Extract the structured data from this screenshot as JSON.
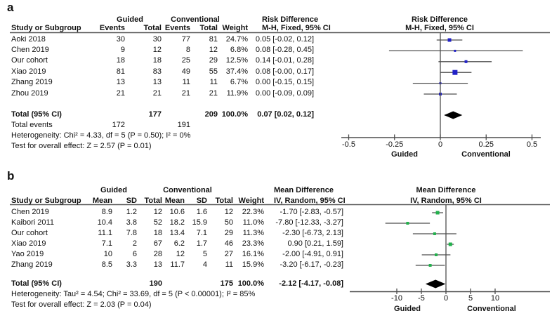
{
  "chart_data": [
    {
      "type": "forest",
      "panel_label": "a",
      "effect_measure": "Risk Difference",
      "method": "M-H, Fixed, 95% CI",
      "group_labels": [
        "Guided",
        "Conventional"
      ],
      "column_headers": {
        "study": "Study or Subgroup",
        "group1": [
          "Events",
          "Total"
        ],
        "group2": [
          "Events",
          "Total"
        ],
        "weight": "Weight",
        "effect": [
          "Risk Difference",
          "M-H, Fixed, 95% CI"
        ]
      },
      "plot_titles": [
        "Risk Difference",
        "M-H, Fixed, 95% CI"
      ],
      "studies": [
        {
          "name": "Aoki 2018",
          "cells": [
            "30",
            "30",
            "77",
            "81",
            "24.7%"
          ],
          "weight_pct": 24.7,
          "est": 0.05,
          "lo": -0.02,
          "hi": 0.12,
          "ci_text": "0.05 [-0.02, 0.12]"
        },
        {
          "name": "Chen 2019",
          "cells": [
            "9",
            "12",
            "8",
            "12",
            "6.8%"
          ],
          "weight_pct": 6.8,
          "est": 0.08,
          "lo": -0.28,
          "hi": 0.45,
          "ci_text": "0.08 [-0.28, 0.45]"
        },
        {
          "name": "Our cohort",
          "cells": [
            "18",
            "18",
            "25",
            "29",
            "12.5%"
          ],
          "weight_pct": 12.5,
          "est": 0.14,
          "lo": -0.01,
          "hi": 0.28,
          "ci_text": "0.14 [-0.01, 0.28]"
        },
        {
          "name": "Xiao 2019",
          "cells": [
            "81",
            "83",
            "49",
            "55",
            "37.4%"
          ],
          "weight_pct": 37.4,
          "est": 0.08,
          "lo": 0.0,
          "hi": 0.17,
          "ci_text": "0.08 [-0.00, 0.17]"
        },
        {
          "name": "Zhang 2019",
          "cells": [
            "13",
            "13",
            "11",
            "11",
            "6.7%"
          ],
          "weight_pct": 6.7,
          "est": 0.0,
          "lo": -0.15,
          "hi": 0.15,
          "ci_text": "0.00 [-0.15, 0.15]"
        },
        {
          "name": "Zhou 2019",
          "cells": [
            "21",
            "21",
            "21",
            "21",
            "11.9%"
          ],
          "weight_pct": 11.9,
          "est": 0.0,
          "lo": -0.09,
          "hi": 0.09,
          "ci_text": "0.00 [-0.09, 0.09]"
        }
      ],
      "total": {
        "name": "Total (95% CI)",
        "cells": [
          "",
          "177",
          "",
          "209",
          "100.0%"
        ],
        "est": 0.07,
        "lo": 0.02,
        "hi": 0.12,
        "ci_text": "0.07 [0.02, 0.12]"
      },
      "total_events": {
        "label": "Total events",
        "values": [
          "172",
          "191"
        ]
      },
      "heterogeneity": "Heterogeneity: Chi² = 4.33, df = 5 (P = 0.50); I² = 0%",
      "overall_effect": "Test for overall effect: Z = 2.57 (P = 0.01)",
      "axis": {
        "tick_values": [
          -0.5,
          -0.25,
          0,
          0.25,
          0.5
        ],
        "tick_labels": [
          "-0.5",
          "-0.25",
          "0",
          "0.25",
          "0.5"
        ],
        "favors_left": "Guided",
        "favors_right": "Conventional"
      },
      "marker_color": "#2121c8",
      "line_color": "#4d4d4d",
      "diamond_color": "#000000"
    },
    {
      "type": "forest",
      "panel_label": "b",
      "effect_measure": "Mean Difference",
      "method": "IV, Random, 95% CI",
      "group_labels": [
        "Guided",
        "Conventional"
      ],
      "column_headers": {
        "study": "Study or Subgroup",
        "group1": [
          "Mean",
          "SD",
          "Total"
        ],
        "group2": [
          "Mean",
          "SD",
          "Total"
        ],
        "weight": "Weight",
        "effect": [
          "Mean Difference",
          "IV, Random, 95% CI"
        ]
      },
      "plot_titles": [
        "Mean Difference",
        "IV, Random, 95% CI"
      ],
      "studies": [
        {
          "name": "Chen 2019",
          "cells": [
            "8.9",
            "1.2",
            "12",
            "10.6",
            "1.6",
            "12",
            "22.3%"
          ],
          "weight_pct": 22.3,
          "est": -1.7,
          "lo": -2.83,
          "hi": -0.57,
          "ci_text": "-1.70 [-2.83, -0.57]"
        },
        {
          "name": "Kaibori 2011",
          "cells": [
            "10.4",
            "3.8",
            "52",
            "18.2",
            "15.9",
            "50",
            "11.0%"
          ],
          "weight_pct": 11.0,
          "est": -7.8,
          "lo": -12.33,
          "hi": -3.27,
          "ci_text": "-7.80 [-12.33, -3.27]"
        },
        {
          "name": "Our cohort",
          "cells": [
            "11.1",
            "7.8",
            "18",
            "13.4",
            "7.1",
            "29",
            "11.3%"
          ],
          "weight_pct": 11.3,
          "est": -2.3,
          "lo": -6.73,
          "hi": 2.13,
          "ci_text": "-2.30 [-6.73, 2.13]"
        },
        {
          "name": "Xiao 2019",
          "cells": [
            "7.1",
            "2",
            "67",
            "6.2",
            "1.7",
            "46",
            "23.3%"
          ],
          "weight_pct": 23.3,
          "est": 0.9,
          "lo": 0.21,
          "hi": 1.59,
          "ci_text": "0.90 [0.21, 1.59]"
        },
        {
          "name": "Yao 2019",
          "cells": [
            "10",
            "6",
            "28",
            "12",
            "5",
            "27",
            "16.1%"
          ],
          "weight_pct": 16.1,
          "est": -2.0,
          "lo": -4.91,
          "hi": 0.91,
          "ci_text": "-2.00 [-4.91, 0.91]"
        },
        {
          "name": "Zhang 2019",
          "cells": [
            "8.5",
            "3.3",
            "13",
            "11.7",
            "4",
            "11",
            "15.9%"
          ],
          "weight_pct": 15.9,
          "est": -3.2,
          "lo": -6.17,
          "hi": -0.23,
          "ci_text": "-3.20 [-6.17, -0.23]"
        }
      ],
      "total": {
        "name": "Total (95% CI)",
        "cells": [
          "",
          "",
          "190",
          "",
          "",
          "175",
          "100.0%"
        ],
        "est": -2.12,
        "lo": -4.17,
        "hi": -0.08,
        "ci_text": "-2.12 [-4.17, -0.08]"
      },
      "heterogeneity": "Heterogeneity: Tau² = 4.54; Chi² = 33.69, df = 5 (P < 0.00001); I² = 85%",
      "overall_effect": "Test for overall effect: Z = 2.03 (P = 0.04)",
      "axis": {
        "tick_values": [
          -10,
          -5,
          0,
          5,
          10
        ],
        "tick_labels": [
          "-10",
          "-5",
          "0",
          "5",
          "10"
        ],
        "favors_left": "Guided",
        "favors_right": "Conventional"
      },
      "marker_color": "#22b14c",
      "line_color": "#4d4d4d",
      "diamond_color": "#000000"
    }
  ]
}
